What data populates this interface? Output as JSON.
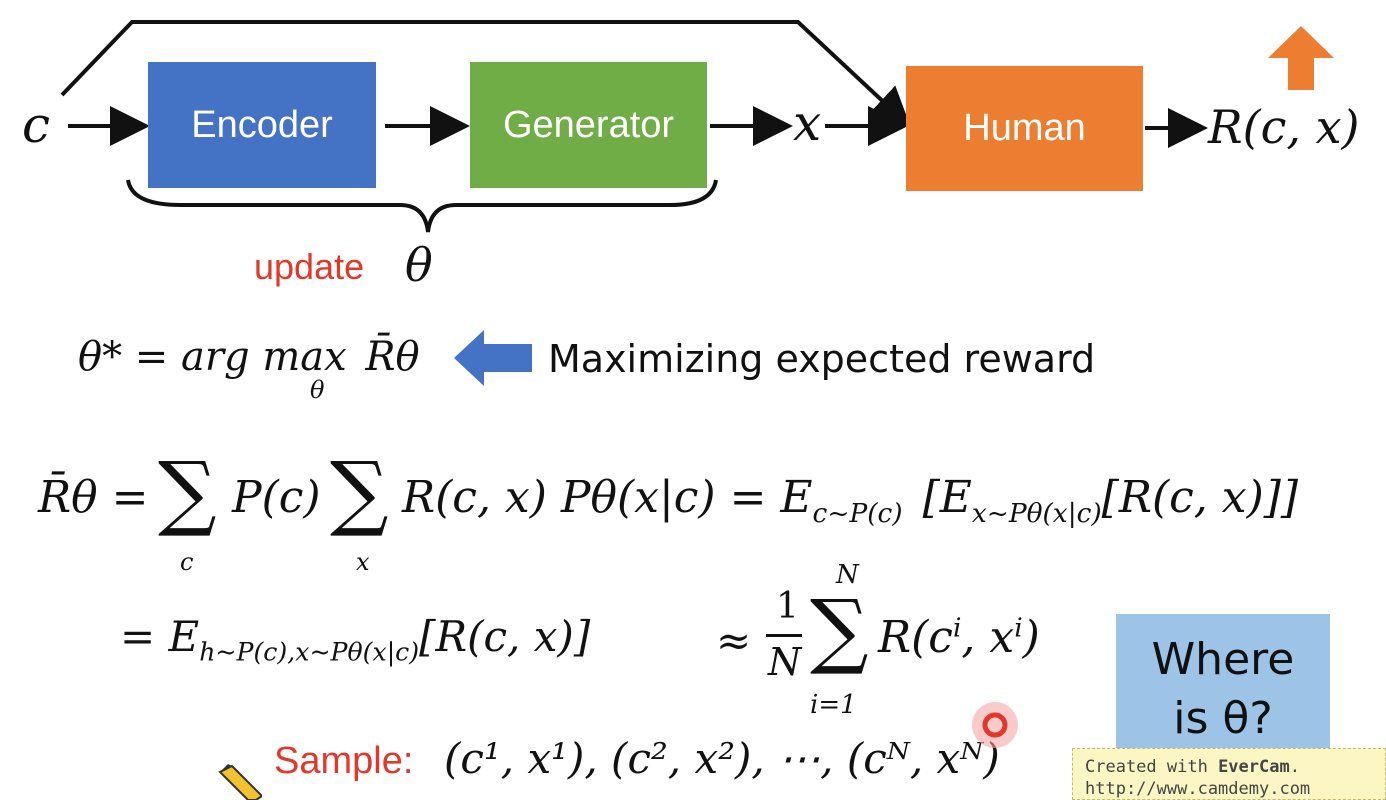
{
  "diagram": {
    "input_label": "c",
    "encoder_label": "Encoder",
    "generator_label": "Generator",
    "output_label": "x",
    "human_label": "Human",
    "reward_label": "R(c, x)",
    "update_word": "update",
    "theta_symbol": "θ",
    "colors": {
      "encoder": "#4472c4",
      "generator": "#70ad47",
      "human": "#ed7d31",
      "update_text": "#e2372b",
      "arrow_blue": "#4472c4"
    }
  },
  "objective": {
    "formula_lhs": "θ* = arg max",
    "formula_sub": "θ",
    "formula_rhs": "R̄θ",
    "note": "Maximizing expected reward"
  },
  "expectation": {
    "lhs": "R̄θ =",
    "sum_c_sub": "c",
    "term1": "P(c)",
    "sum_x_sub": "x",
    "term2": "R(c, x) Pθ(x|c) = E",
    "term2_sub": "c~P(c)",
    "term3_open": "[E",
    "term3_sub": "x~Pθ(x|c)",
    "term3_close": "[R(c, x)]]"
  },
  "approximation": {
    "line": "= E",
    "line_sub": "h~P(c),x~Pθ(x|c)",
    "line_rest": "[R(c, x)]",
    "approx": "≈",
    "frac_num": "1",
    "frac_den": "N",
    "sum_top": "N",
    "sum_bottom": "i=1",
    "term": "R(c",
    "term_sup1": "i",
    "term_mid": ", x",
    "term_sup2": "i",
    "term_close": ")"
  },
  "sample": {
    "label": "Sample:",
    "sequence": "(c¹, x¹), (c², x²), ⋯, (cᴺ, xᴺ)"
  },
  "question_box": {
    "line1": "Where",
    "line2": "is θ?"
  },
  "watermark": {
    "line1_prefix": "Created with ",
    "line1_brand": "EverCam",
    "line1_suffix": ".",
    "line2": "http://www.camdemy.com"
  }
}
